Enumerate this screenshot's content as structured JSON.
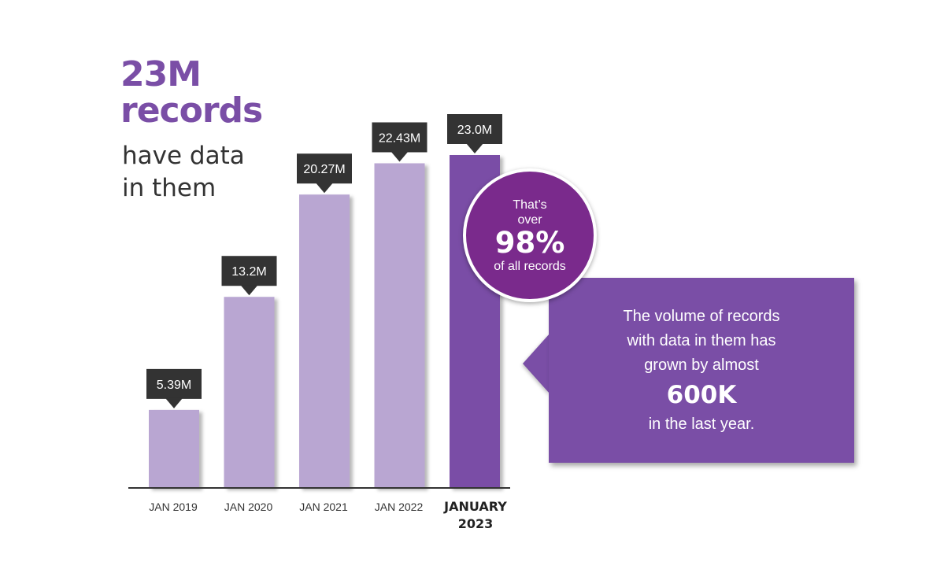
{
  "headline": {
    "line1": "23M",
    "line2": "records"
  },
  "subline": {
    "line1": "have data",
    "line2": "in them"
  },
  "colors": {
    "headline": "#7a4ea6",
    "bar": "#b9a6d2",
    "bar_highlight": "#7a4ea6",
    "label_box": "#333333",
    "circle": "#7a2a8c",
    "callout": "#7a4ea6",
    "axis": "#333333"
  },
  "circle": {
    "line1": "That’s",
    "line2": "over",
    "big": "98%",
    "line3": "of all records"
  },
  "callout": {
    "line1": "The volume of records",
    "line2": "with data in them has",
    "line3": "grown by almost",
    "big": "600K",
    "line4": "in the last year."
  },
  "chart_data": {
    "type": "bar",
    "categories": [
      "JAN 2019",
      "JAN 2020",
      "JAN 2021",
      "JAN 2022",
      "JANUARY 2023"
    ],
    "values": [
      5.39,
      13.2,
      20.27,
      22.43,
      23.0
    ],
    "data_labels": [
      "5.39M",
      "13.2M",
      "20.27M",
      "22.43M",
      "23.0M"
    ],
    "highlight_index": 4,
    "ylim": [
      0,
      23.0
    ],
    "grid": false,
    "legend": "none",
    "title": "",
    "xlabel": "",
    "ylabel": ""
  }
}
